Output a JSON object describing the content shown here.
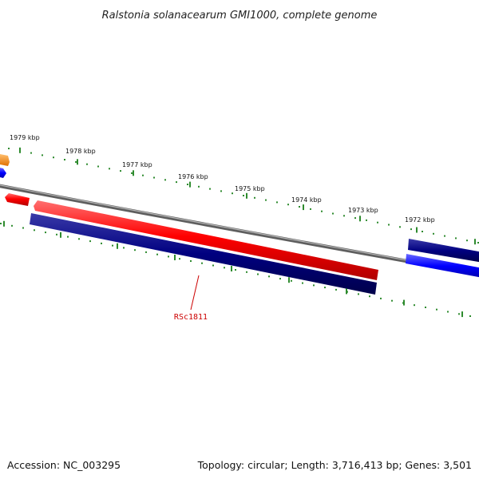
{
  "title": "Ralstonia solanacearum GMI1000, complete genome",
  "scale_labels": [
    "1979 kbp",
    "1978 kbp",
    "1977 kbp",
    "1976 kbp",
    "1975 kbp",
    "1974 kbp",
    "1973 kbp",
    "1972 kbp"
  ],
  "gene_label": "RSc1811",
  "footer": {
    "accession": "Accession: NC_003295",
    "summary": "Topology: circular; Length: 3,716,413 bp; Genes: 3,501"
  },
  "colors": {
    "backbone": "#8a8a8a",
    "tick": "#2e8b2e",
    "forward_gene": "#ff0000",
    "reverse_gene": "#000080",
    "forward_blue": "#0000ff",
    "orange_gene": "#ff8c00",
    "label_line": "#cc0000"
  }
}
